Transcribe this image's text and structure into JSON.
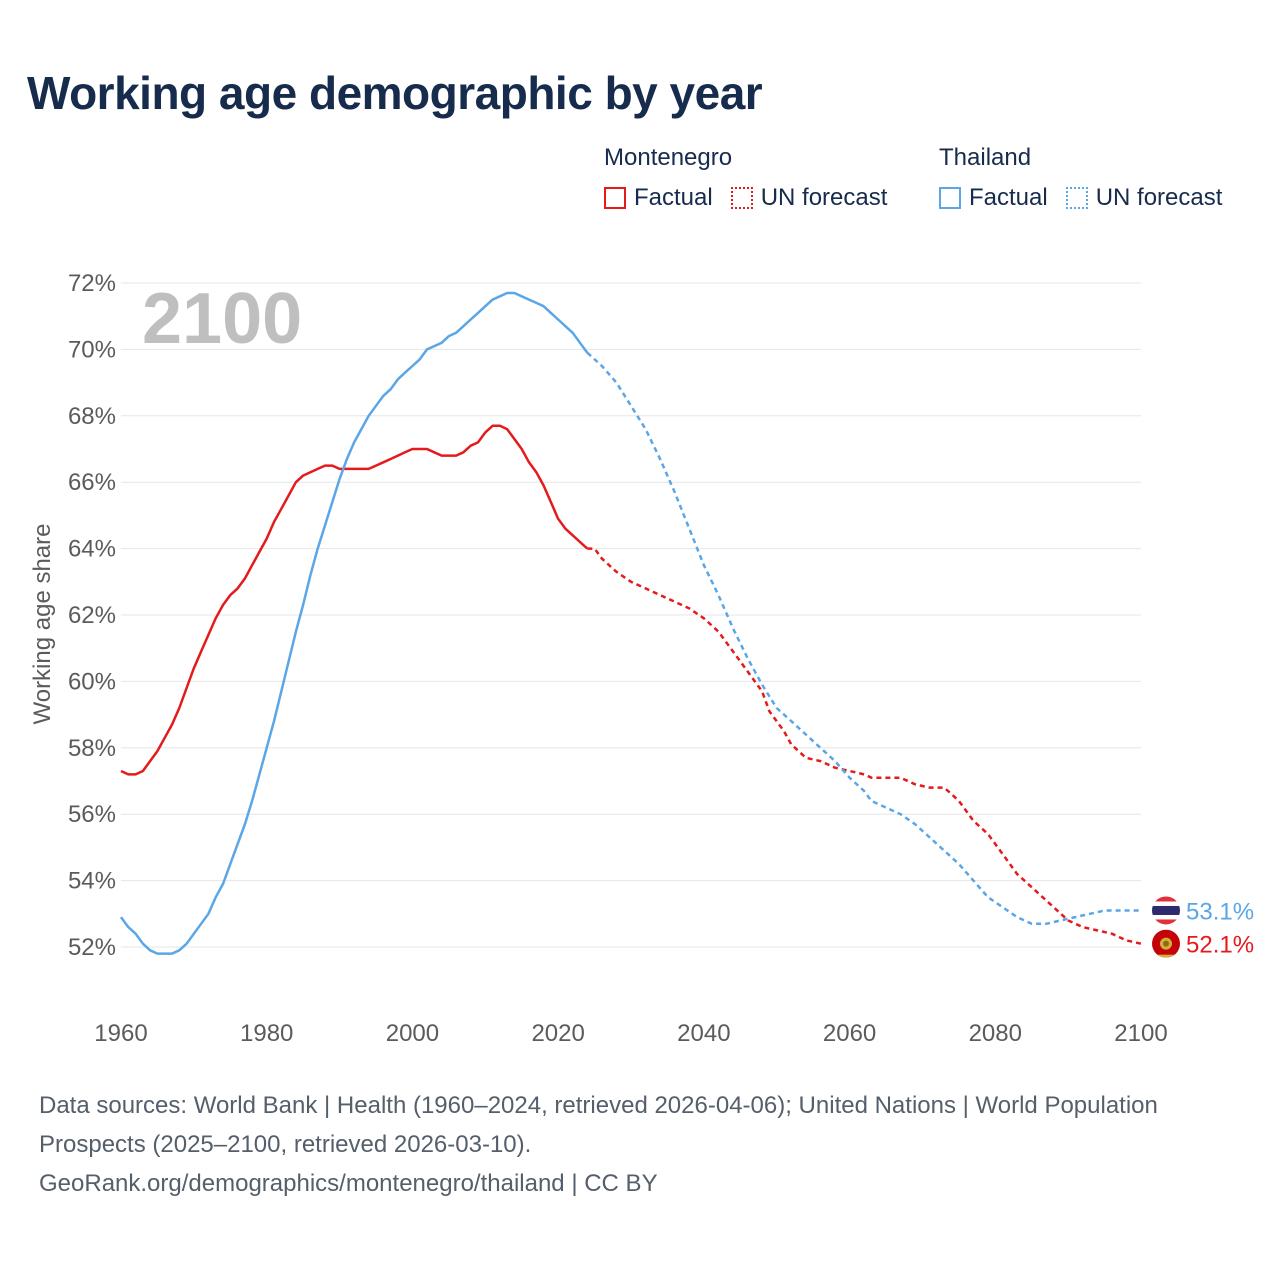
{
  "title": "Working age demographic by year",
  "legend": {
    "montenegro": {
      "name": "Montenegro",
      "factual": "Factual",
      "forecast": "UN forecast"
    },
    "thailand": {
      "name": "Thailand",
      "factual": "Factual",
      "forecast": "UN forecast"
    }
  },
  "year_display": "2100",
  "footer": {
    "line1": "Data sources: World Bank | Health (1960–2024, retrieved 2026-04-06); United Nations | World Population Prospects (2025–2100, retrieved 2026-03-10).",
    "line2": "GeoRank.org/demographics/montenegro/thailand | CC BY"
  },
  "colors": {
    "montenegro": "#e41a1c",
    "thailand": "#5aa6e6",
    "grid": "#e6e6e6",
    "axis_text": "#5b5b5b",
    "year_watermark": "#bfbfbf"
  },
  "chart_data": {
    "type": "line",
    "title": "Working age demographic by year",
    "xlabel": "",
    "ylabel": "Working age share",
    "xlim": [
      1960,
      2100
    ],
    "ylim": [
      51,
      72.5
    ],
    "x_ticks": [
      1960,
      1980,
      2000,
      2020,
      2040,
      2060,
      2080,
      2100
    ],
    "x_tick_labels": [
      "1960",
      "1980",
      "2000",
      "2020",
      "2040",
      "2060",
      "2080",
      "2100"
    ],
    "y_ticks": [
      52,
      54,
      56,
      58,
      60,
      62,
      64,
      66,
      68,
      70,
      72
    ],
    "y_tick_labels": [
      "52%",
      "54%",
      "56%",
      "58%",
      "60%",
      "62%",
      "64%",
      "66%",
      "68%",
      "70%",
      "72%"
    ],
    "factual_range": "1960–2024",
    "forecast_range": "2024–2100",
    "series": [
      {
        "name": "Montenegro",
        "end_label": "52.1%",
        "factual": [
          [
            1960,
            57.3
          ],
          [
            1961,
            57.2
          ],
          [
            1962,
            57.2
          ],
          [
            1963,
            57.3
          ],
          [
            1964,
            57.6
          ],
          [
            1965,
            57.9
          ],
          [
            1966,
            58.3
          ],
          [
            1967,
            58.7
          ],
          [
            1968,
            59.2
          ],
          [
            1969,
            59.8
          ],
          [
            1970,
            60.4
          ],
          [
            1971,
            60.9
          ],
          [
            1972,
            61.4
          ],
          [
            1973,
            61.9
          ],
          [
            1974,
            62.3
          ],
          [
            1975,
            62.6
          ],
          [
            1976,
            62.8
          ],
          [
            1977,
            63.1
          ],
          [
            1978,
            63.5
          ],
          [
            1979,
            63.9
          ],
          [
            1980,
            64.3
          ],
          [
            1981,
            64.8
          ],
          [
            1982,
            65.2
          ],
          [
            1983,
            65.6
          ],
          [
            1984,
            66.0
          ],
          [
            1985,
            66.2
          ],
          [
            1986,
            66.3
          ],
          [
            1987,
            66.4
          ],
          [
            1988,
            66.5
          ],
          [
            1989,
            66.5
          ],
          [
            1990,
            66.4
          ],
          [
            1991,
            66.4
          ],
          [
            1992,
            66.4
          ],
          [
            1993,
            66.4
          ],
          [
            1994,
            66.4
          ],
          [
            1995,
            66.5
          ],
          [
            1996,
            66.6
          ],
          [
            1997,
            66.7
          ],
          [
            1998,
            66.8
          ],
          [
            1999,
            66.9
          ],
          [
            2000,
            67.0
          ],
          [
            2001,
            67.0
          ],
          [
            2002,
            67.0
          ],
          [
            2003,
            66.9
          ],
          [
            2004,
            66.8
          ],
          [
            2005,
            66.8
          ],
          [
            2006,
            66.8
          ],
          [
            2007,
            66.9
          ],
          [
            2008,
            67.1
          ],
          [
            2009,
            67.2
          ],
          [
            2010,
            67.5
          ],
          [
            2011,
            67.7
          ],
          [
            2012,
            67.7
          ],
          [
            2013,
            67.6
          ],
          [
            2014,
            67.3
          ],
          [
            2015,
            67.0
          ],
          [
            2016,
            66.6
          ],
          [
            2017,
            66.3
          ],
          [
            2018,
            65.9
          ],
          [
            2019,
            65.4
          ],
          [
            2020,
            64.9
          ],
          [
            2021,
            64.6
          ],
          [
            2022,
            64.4
          ],
          [
            2023,
            64.2
          ],
          [
            2024,
            64.0
          ]
        ],
        "forecast": [
          [
            2024,
            64.0
          ],
          [
            2025,
            64.0
          ],
          [
            2026,
            63.7
          ],
          [
            2028,
            63.3
          ],
          [
            2030,
            63.0
          ],
          [
            2032,
            62.8
          ],
          [
            2034,
            62.6
          ],
          [
            2036,
            62.4
          ],
          [
            2038,
            62.2
          ],
          [
            2040,
            61.9
          ],
          [
            2042,
            61.5
          ],
          [
            2044,
            60.9
          ],
          [
            2046,
            60.3
          ],
          [
            2048,
            59.7
          ],
          [
            2049,
            59.1
          ],
          [
            2051,
            58.5
          ],
          [
            2052,
            58.1
          ],
          [
            2054,
            57.7
          ],
          [
            2056,
            57.6
          ],
          [
            2058,
            57.4
          ],
          [
            2060,
            57.3
          ],
          [
            2062,
            57.2
          ],
          [
            2063,
            57.1
          ],
          [
            2065,
            57.1
          ],
          [
            2067,
            57.1
          ],
          [
            2069,
            56.9
          ],
          [
            2071,
            56.8
          ],
          [
            2073,
            56.8
          ],
          [
            2075,
            56.4
          ],
          [
            2077,
            55.8
          ],
          [
            2079,
            55.4
          ],
          [
            2081,
            54.8
          ],
          [
            2083,
            54.2
          ],
          [
            2085,
            53.8
          ],
          [
            2087,
            53.4
          ],
          [
            2088,
            53.2
          ],
          [
            2090,
            52.8
          ],
          [
            2092,
            52.6
          ],
          [
            2094,
            52.5
          ],
          [
            2096,
            52.4
          ],
          [
            2098,
            52.2
          ],
          [
            2100,
            52.1
          ]
        ]
      },
      {
        "name": "Thailand",
        "end_label": "53.1%",
        "factual": [
          [
            1960,
            52.9
          ],
          [
            1961,
            52.6
          ],
          [
            1962,
            52.4
          ],
          [
            1963,
            52.1
          ],
          [
            1964,
            51.9
          ],
          [
            1965,
            51.8
          ],
          [
            1966,
            51.8
          ],
          [
            1967,
            51.8
          ],
          [
            1968,
            51.9
          ],
          [
            1969,
            52.1
          ],
          [
            1970,
            52.4
          ],
          [
            1971,
            52.7
          ],
          [
            1972,
            53.0
          ],
          [
            1973,
            53.5
          ],
          [
            1974,
            53.9
          ],
          [
            1975,
            54.5
          ],
          [
            1976,
            55.1
          ],
          [
            1977,
            55.7
          ],
          [
            1978,
            56.4
          ],
          [
            1979,
            57.2
          ],
          [
            1980,
            58.0
          ],
          [
            1981,
            58.8
          ],
          [
            1982,
            59.7
          ],
          [
            1983,
            60.6
          ],
          [
            1984,
            61.5
          ],
          [
            1985,
            62.3
          ],
          [
            1986,
            63.2
          ],
          [
            1987,
            64.0
          ],
          [
            1988,
            64.7
          ],
          [
            1989,
            65.4
          ],
          [
            1990,
            66.1
          ],
          [
            1991,
            66.7
          ],
          [
            1992,
            67.2
          ],
          [
            1993,
            67.6
          ],
          [
            1994,
            68.0
          ],
          [
            1995,
            68.3
          ],
          [
            1996,
            68.6
          ],
          [
            1997,
            68.8
          ],
          [
            1998,
            69.1
          ],
          [
            1999,
            69.3
          ],
          [
            2000,
            69.5
          ],
          [
            2001,
            69.7
          ],
          [
            2002,
            70.0
          ],
          [
            2003,
            70.1
          ],
          [
            2004,
            70.2
          ],
          [
            2005,
            70.4
          ],
          [
            2006,
            70.5
          ],
          [
            2007,
            70.7
          ],
          [
            2008,
            70.9
          ],
          [
            2009,
            71.1
          ],
          [
            2010,
            71.3
          ],
          [
            2011,
            71.5
          ],
          [
            2012,
            71.6
          ],
          [
            2013,
            71.7
          ],
          [
            2014,
            71.7
          ],
          [
            2015,
            71.6
          ],
          [
            2016,
            71.5
          ],
          [
            2017,
            71.4
          ],
          [
            2018,
            71.3
          ],
          [
            2019,
            71.1
          ],
          [
            2020,
            70.9
          ],
          [
            2021,
            70.7
          ],
          [
            2022,
            70.5
          ],
          [
            2023,
            70.2
          ],
          [
            2024,
            69.9
          ]
        ],
        "forecast": [
          [
            2024,
            69.9
          ],
          [
            2026,
            69.5
          ],
          [
            2028,
            69.0
          ],
          [
            2030,
            68.3
          ],
          [
            2032,
            67.6
          ],
          [
            2034,
            66.7
          ],
          [
            2036,
            65.7
          ],
          [
            2038,
            64.6
          ],
          [
            2040,
            63.5
          ],
          [
            2042,
            62.6
          ],
          [
            2044,
            61.6
          ],
          [
            2046,
            60.7
          ],
          [
            2048,
            59.9
          ],
          [
            2050,
            59.2
          ],
          [
            2052,
            58.8
          ],
          [
            2054,
            58.4
          ],
          [
            2056,
            58.0
          ],
          [
            2058,
            57.6
          ],
          [
            2060,
            57.1
          ],
          [
            2062,
            56.7
          ],
          [
            2063,
            56.4
          ],
          [
            2065,
            56.2
          ],
          [
            2067,
            56.0
          ],
          [
            2069,
            55.7
          ],
          [
            2071,
            55.3
          ],
          [
            2073,
            54.9
          ],
          [
            2075,
            54.5
          ],
          [
            2077,
            54.0
          ],
          [
            2079,
            53.5
          ],
          [
            2081,
            53.2
          ],
          [
            2083,
            52.9
          ],
          [
            2085,
            52.7
          ],
          [
            2087,
            52.7
          ],
          [
            2089,
            52.8
          ],
          [
            2091,
            52.9
          ],
          [
            2093,
            53.0
          ],
          [
            2095,
            53.1
          ],
          [
            2100,
            53.1
          ]
        ]
      }
    ]
  }
}
